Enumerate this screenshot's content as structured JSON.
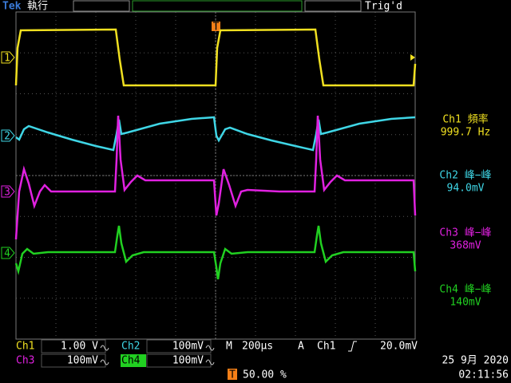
{
  "header": {
    "brand": "Tek",
    "status": "執行",
    "trigger_status": "Trig'd"
  },
  "channel_markers": [
    "1",
    "2",
    "3",
    "4"
  ],
  "measurements": [
    {
      "label": "Ch1 頻率",
      "value": "999.7 Hz"
    },
    {
      "label": "Ch2 峰−峰",
      "value": "94.0mV"
    },
    {
      "label": "Ch3 峰−峰",
      "value": "368mV"
    },
    {
      "label": "Ch4 峰−峰",
      "value": "140mV"
    }
  ],
  "footer": {
    "channels": [
      {
        "name": "Ch1",
        "scale": "1.00 V"
      },
      {
        "name": "Ch2",
        "scale": "100mV"
      },
      {
        "name": "Ch3",
        "scale": "100mV"
      },
      {
        "name": "Ch4",
        "scale": "100mV"
      }
    ],
    "timebase": {
      "label": "M",
      "value": "200µs"
    },
    "trigger": {
      "mode": "A",
      "source": "Ch1",
      "level": "20.0mV"
    },
    "trigger_marker": "T",
    "trigger_position": "50.00 %",
    "date": "25 9月  2020",
    "time": "02:11:56"
  }
}
